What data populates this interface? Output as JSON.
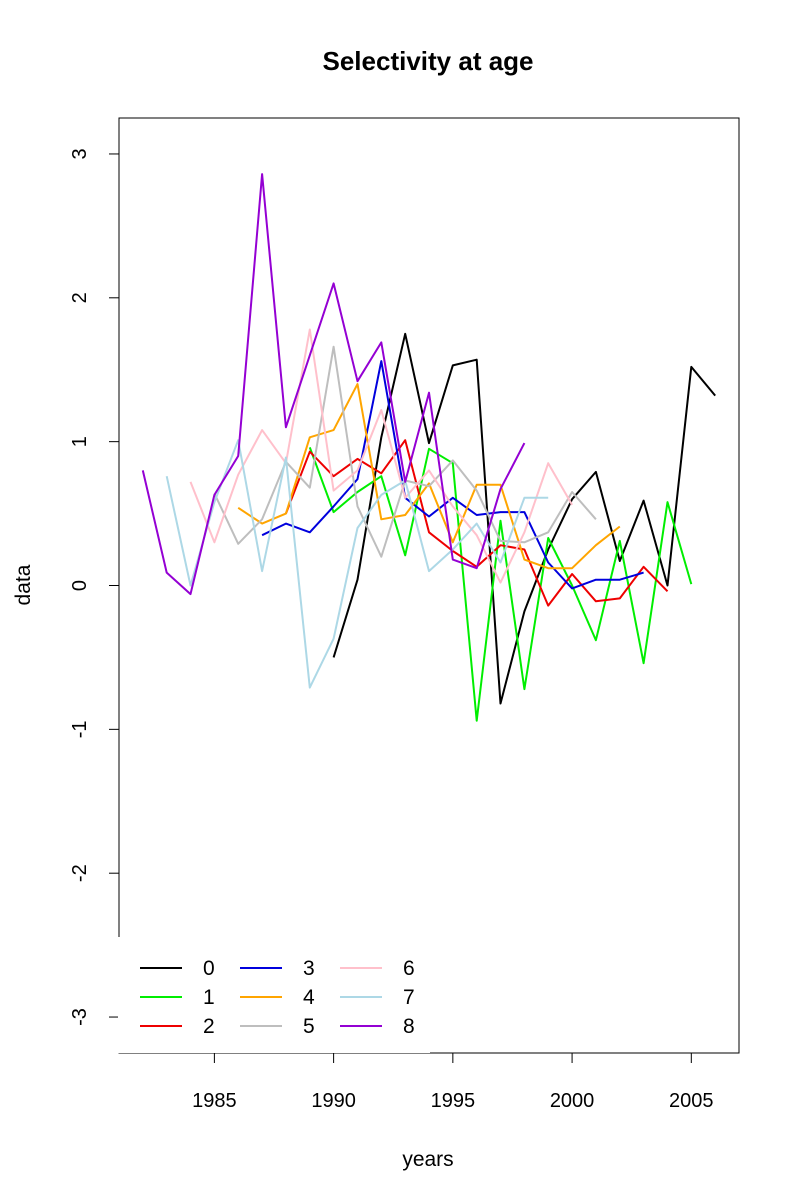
{
  "chart_data": {
    "type": "line",
    "title": "Selectivity at age",
    "xlabel": "years",
    "ylabel": "data",
    "xlim": [
      1981,
      2007
    ],
    "ylim": [
      -3.25,
      3.25
    ],
    "xticks": [
      1985,
      1990,
      1995,
      2000,
      2005
    ],
    "yticks": [
      -3,
      -2,
      -1,
      0,
      1,
      2,
      3
    ],
    "grid": false,
    "legend": {
      "placement": "bottom-left",
      "columns": 3
    },
    "series": [
      {
        "name": "0",
        "color": "#000000",
        "x": [
          1990,
          1991,
          1992,
          1993,
          1994,
          1995,
          1996,
          1997,
          1998,
          1999,
          2000,
          2001,
          2002,
          2003,
          2004,
          2005,
          2006
        ],
        "y": [
          -0.5,
          0.04,
          1.03,
          1.75,
          0.99,
          1.53,
          1.57,
          -0.82,
          -0.18,
          0.25,
          0.6,
          0.79,
          0.17,
          0.59,
          0.0,
          1.52,
          1.32
        ]
      },
      {
        "name": "1",
        "color": "#00ee00",
        "x": [
          1989,
          1990,
          1991,
          1992,
          1993,
          1994,
          1995,
          1996,
          1997,
          1998,
          1999,
          2000,
          2001,
          2002,
          2003,
          2004,
          2005
        ],
        "y": [
          0.96,
          0.51,
          0.65,
          0.76,
          0.21,
          0.95,
          0.85,
          -0.94,
          0.45,
          -0.72,
          0.33,
          0.0,
          -0.38,
          0.31,
          -0.54,
          0.58,
          0.01
        ]
      },
      {
        "name": "2",
        "color": "#ee0000",
        "x": [
          1988,
          1989,
          1990,
          1991,
          1992,
          1993,
          1994,
          1995,
          1996,
          1997,
          1998,
          1999,
          2000,
          2001,
          2002,
          2003,
          2004
        ],
        "y": [
          0.5,
          0.93,
          0.76,
          0.88,
          0.78,
          1.01,
          0.37,
          0.24,
          0.13,
          0.28,
          0.25,
          -0.14,
          0.08,
          -0.11,
          -0.09,
          0.13,
          -0.04
        ]
      },
      {
        "name": "3",
        "color": "#0000dd",
        "x": [
          1987,
          1988,
          1989,
          1990,
          1991,
          1992,
          1993,
          1994,
          1995,
          1996,
          1997,
          1998,
          1999,
          2000,
          2001,
          2002,
          2003
        ],
        "y": [
          0.35,
          0.43,
          0.37,
          0.55,
          0.74,
          1.56,
          0.61,
          0.48,
          0.61,
          0.49,
          0.51,
          0.51,
          0.16,
          -0.02,
          0.04,
          0.04,
          0.09
        ]
      },
      {
        "name": "4",
        "color": "#ffa500",
        "x": [
          1986,
          1987,
          1988,
          1989,
          1990,
          1991,
          1992,
          1993,
          1994,
          1995,
          1996,
          1997,
          1998,
          1999,
          2000,
          2001,
          2002
        ],
        "y": [
          0.54,
          0.43,
          0.5,
          1.03,
          1.08,
          1.4,
          0.46,
          0.49,
          0.71,
          0.3,
          0.7,
          0.7,
          0.18,
          0.12,
          0.12,
          0.28,
          0.41
        ]
      },
      {
        "name": "5",
        "color": "#bebebe",
        "x": [
          1985,
          1986,
          1987,
          1988,
          1989,
          1990,
          1991,
          1992,
          1993,
          1994,
          1995,
          1996,
          1997,
          1998,
          1999,
          2000,
          2001
        ],
        "y": [
          0.64,
          0.29,
          0.46,
          0.86,
          0.68,
          1.66,
          0.55,
          0.2,
          0.73,
          0.69,
          0.87,
          0.66,
          0.31,
          0.3,
          0.37,
          0.65,
          0.46
        ]
      },
      {
        "name": "6",
        "color": "#ffc0cb",
        "x": [
          1984,
          1985,
          1986,
          1987,
          1988,
          1989,
          1990,
          1991,
          1992,
          1993,
          1994,
          1995,
          1996,
          1997,
          1998,
          1999,
          2000
        ],
        "y": [
          0.72,
          0.3,
          0.77,
          1.08,
          0.85,
          1.78,
          0.66,
          0.8,
          1.22,
          0.61,
          0.8,
          0.55,
          0.35,
          0.02,
          0.37,
          0.85,
          0.56
        ]
      },
      {
        "name": "7",
        "color": "#add8e6",
        "x": [
          1983,
          1984,
          1985,
          1986,
          1987,
          1988,
          1989,
          1990,
          1991,
          1992,
          1993,
          1994,
          1995,
          1996,
          1997,
          1998,
          1999
        ],
        "y": [
          0.76,
          0.0,
          0.58,
          1.01,
          0.1,
          0.89,
          -0.71,
          -0.37,
          0.4,
          0.63,
          0.73,
          0.1,
          0.25,
          0.43,
          0.16,
          0.61,
          0.61
        ]
      },
      {
        "name": "8",
        "color": "#9400d3",
        "x": [
          1982,
          1983,
          1984,
          1985,
          1986,
          1987,
          1988,
          1989,
          1990,
          1991,
          1992,
          1993,
          1994,
          1995,
          1996,
          1997,
          1998
        ],
        "y": [
          0.8,
          0.09,
          -0.06,
          0.63,
          0.9,
          2.86,
          1.1,
          1.6,
          2.1,
          1.42,
          1.69,
          0.72,
          1.34,
          0.18,
          0.12,
          0.67,
          0.99
        ]
      }
    ]
  }
}
